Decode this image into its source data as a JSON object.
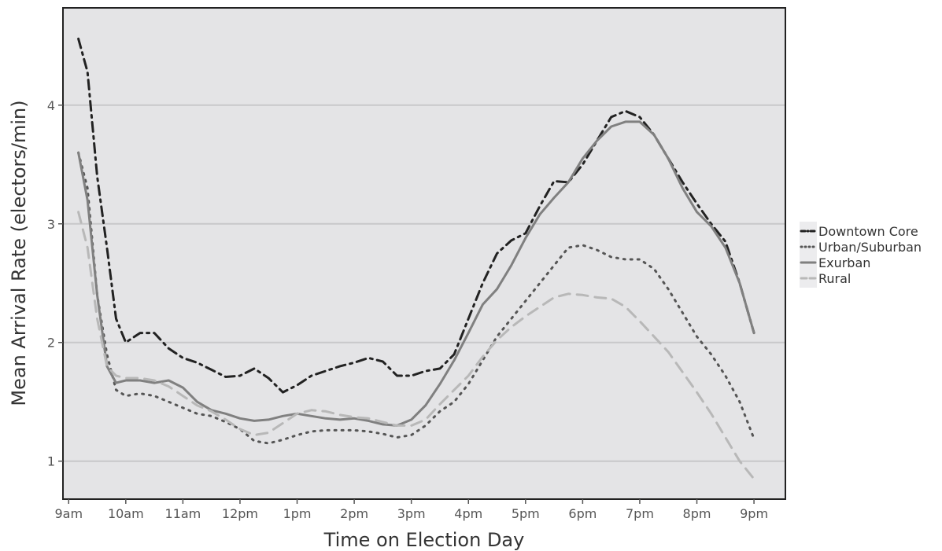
{
  "chart_data": {
    "type": "line",
    "title": "",
    "xlabel": "Time on Election Day",
    "ylabel": "Mean Arrival Rate (electors/min)",
    "xlim": [
      8.9,
      21.55
    ],
    "ylim": [
      0.68,
      4.82
    ],
    "x_ticks": [
      9,
      10,
      11,
      12,
      13,
      14,
      15,
      16,
      17,
      18,
      19,
      20,
      21
    ],
    "x_tick_labels": [
      "9am",
      "10am",
      "11am",
      "12pm",
      "1pm",
      "2pm",
      "3pm",
      "4pm",
      "5pm",
      "6pm",
      "7pm",
      "8pm",
      "9pm"
    ],
    "y_ticks": [
      1,
      2,
      3,
      4
    ],
    "y_tick_labels": [
      "1",
      "2",
      "3",
      "4"
    ],
    "grid": "horizontal",
    "legend_position": "right",
    "background": "#e4e4e6",
    "series": [
      {
        "name": "Downtown Core",
        "style": "dashdot",
        "color": "#222222",
        "x": [
          9.17,
          9.33,
          9.5,
          9.67,
          9.83,
          10.0,
          10.25,
          10.5,
          10.75,
          11.0,
          11.25,
          11.5,
          11.75,
          12.0,
          12.25,
          12.5,
          12.75,
          13.0,
          13.25,
          13.5,
          13.75,
          14.0,
          14.25,
          14.5,
          14.75,
          15.0,
          15.25,
          15.5,
          15.75,
          16.0,
          16.25,
          16.5,
          16.75,
          17.0,
          17.25,
          17.5,
          17.75,
          18.0,
          18.25,
          18.5,
          18.75,
          19.0,
          19.25,
          19.5,
          19.75,
          20.0,
          20.25,
          20.5,
          20.75,
          21.0
        ],
        "y": [
          4.56,
          4.28,
          3.4,
          2.8,
          2.2,
          2.0,
          2.08,
          2.08,
          1.95,
          1.87,
          1.83,
          1.77,
          1.71,
          1.72,
          1.78,
          1.7,
          1.58,
          1.64,
          1.72,
          1.76,
          1.8,
          1.83,
          1.87,
          1.84,
          1.72,
          1.72,
          1.76,
          1.78,
          1.9,
          2.2,
          2.5,
          2.75,
          2.86,
          2.92,
          3.15,
          3.36,
          3.35,
          3.5,
          3.7,
          3.9,
          3.95,
          3.9,
          3.75,
          3.55,
          3.35,
          3.17,
          3.0,
          2.85,
          2.5,
          2.08
        ]
      },
      {
        "name": "Urban/Suburban",
        "style": "dotted",
        "color": "#555555",
        "x": [
          9.17,
          9.33,
          9.5,
          9.67,
          9.83,
          10.0,
          10.25,
          10.5,
          10.75,
          11.0,
          11.25,
          11.5,
          11.75,
          12.0,
          12.25,
          12.5,
          12.75,
          13.0,
          13.25,
          13.5,
          13.75,
          14.0,
          14.25,
          14.5,
          14.75,
          15.0,
          15.25,
          15.5,
          15.75,
          16.0,
          16.25,
          16.5,
          16.75,
          17.0,
          17.25,
          17.5,
          17.75,
          18.0,
          18.25,
          18.5,
          18.75,
          19.0,
          19.25,
          19.5,
          19.75,
          20.0,
          20.25,
          20.5,
          20.75,
          21.0
        ],
        "y": [
          3.6,
          3.3,
          2.4,
          1.9,
          1.6,
          1.55,
          1.57,
          1.55,
          1.5,
          1.45,
          1.4,
          1.38,
          1.33,
          1.27,
          1.17,
          1.15,
          1.18,
          1.22,
          1.25,
          1.26,
          1.26,
          1.26,
          1.25,
          1.23,
          1.2,
          1.22,
          1.3,
          1.42,
          1.5,
          1.65,
          1.85,
          2.05,
          2.2,
          2.35,
          2.5,
          2.65,
          2.8,
          2.82,
          2.78,
          2.72,
          2.7,
          2.7,
          2.62,
          2.45,
          2.25,
          2.05,
          1.9,
          1.72,
          1.5,
          1.19
        ]
      },
      {
        "name": "Exurban",
        "style": "solid",
        "color": "#808080",
        "x": [
          9.17,
          9.33,
          9.5,
          9.67,
          9.83,
          10.0,
          10.25,
          10.5,
          10.75,
          11.0,
          11.25,
          11.5,
          11.75,
          12.0,
          12.25,
          12.5,
          12.75,
          13.0,
          13.25,
          13.5,
          13.75,
          14.0,
          14.25,
          14.5,
          14.75,
          15.0,
          15.25,
          15.5,
          15.75,
          16.0,
          16.25,
          16.5,
          16.75,
          17.0,
          17.25,
          17.5,
          17.75,
          18.0,
          18.25,
          18.5,
          18.75,
          19.0,
          19.25,
          19.5,
          19.75,
          20.0,
          20.25,
          20.5,
          20.75,
          21.0
        ],
        "y": [
          3.6,
          3.2,
          2.4,
          1.8,
          1.66,
          1.68,
          1.68,
          1.66,
          1.68,
          1.62,
          1.5,
          1.43,
          1.4,
          1.36,
          1.34,
          1.35,
          1.38,
          1.4,
          1.38,
          1.36,
          1.35,
          1.36,
          1.34,
          1.31,
          1.3,
          1.35,
          1.47,
          1.65,
          1.85,
          2.08,
          2.32,
          2.45,
          2.65,
          2.88,
          3.08,
          3.22,
          3.35,
          3.55,
          3.7,
          3.82,
          3.86,
          3.86,
          3.75,
          3.55,
          3.3,
          3.1,
          2.98,
          2.8,
          2.5,
          2.08
        ]
      },
      {
        "name": "Rural",
        "style": "dashed",
        "color": "#b8b8b8",
        "x": [
          9.17,
          9.33,
          9.5,
          9.67,
          9.83,
          10.0,
          10.25,
          10.5,
          10.75,
          11.0,
          11.25,
          11.5,
          11.75,
          12.0,
          12.25,
          12.5,
          12.75,
          13.0,
          13.25,
          13.5,
          13.75,
          14.0,
          14.25,
          14.5,
          14.75,
          15.0,
          15.25,
          15.5,
          15.75,
          16.0,
          16.25,
          16.5,
          16.75,
          17.0,
          17.25,
          17.5,
          17.75,
          18.0,
          18.25,
          18.5,
          18.75,
          19.0,
          19.25,
          19.5,
          19.75,
          20.0,
          20.25,
          20.5,
          20.75,
          21.0
        ],
        "y": [
          3.1,
          2.8,
          2.2,
          1.8,
          1.72,
          1.7,
          1.7,
          1.68,
          1.63,
          1.55,
          1.47,
          1.42,
          1.35,
          1.27,
          1.22,
          1.24,
          1.32,
          1.4,
          1.43,
          1.42,
          1.39,
          1.37,
          1.36,
          1.33,
          1.3,
          1.3,
          1.35,
          1.48,
          1.6,
          1.72,
          1.88,
          2.02,
          2.13,
          2.22,
          2.3,
          2.38,
          2.41,
          2.4,
          2.38,
          2.37,
          2.3,
          2.18,
          2.05,
          1.92,
          1.75,
          1.58,
          1.4,
          1.2,
          1.0,
          0.85
        ]
      }
    ]
  }
}
